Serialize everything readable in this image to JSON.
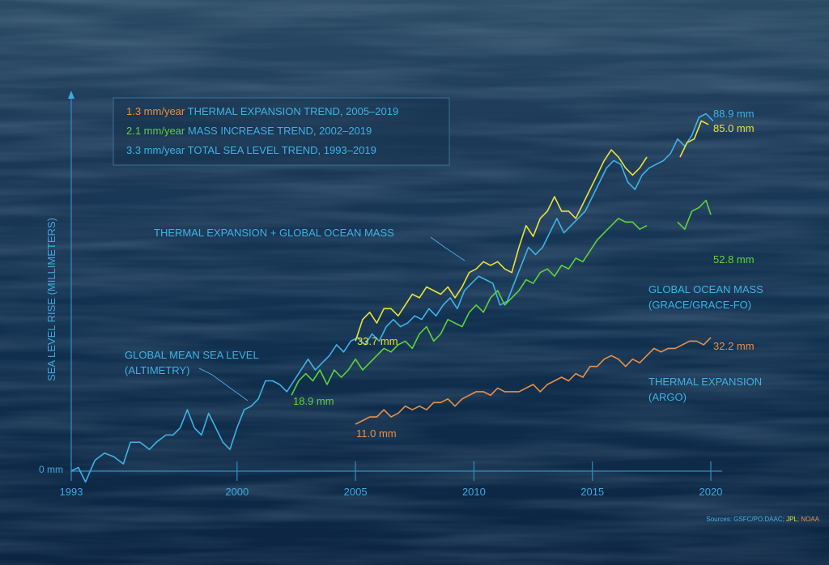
{
  "chart_data": {
    "type": "line",
    "ylabel": "SEA LEVEL RISE (MILLIMETERS)",
    "y_zero_label": "0 mm",
    "x_ticks": [
      1993,
      2000,
      2005,
      2010,
      2015,
      2020
    ],
    "xlim": [
      1993,
      2021
    ],
    "ylim": [
      0,
      100
    ],
    "legend": [
      {
        "rate": "1.3 mm/year",
        "text": "THERMAL EXPANSION TREND, 2005–2019",
        "rate_color": "#f0913c"
      },
      {
        "rate": "2.1 mm/year",
        "text": "MASS INCREASE TREND, 2002–2019",
        "rate_color": "#5ed33a"
      },
      {
        "rate": "3.3 mm/year",
        "text": "TOTAL SEA LEVEL TREND, 1993–2019",
        "rate_color": "#3fb3e6"
      }
    ],
    "annotations": {
      "gmsl_line1": "GLOBAL MEAN SEA LEVEL",
      "gmsl_line2": "(ALTIMETRY)",
      "sum_label": "THERMAL EXPANSION + GLOBAL OCEAN MASS",
      "mass_line1": "GLOBAL OCEAN MASS",
      "mass_line2": "(GRACE/GRACE-FO)",
      "thermal_line1": "THERMAL EXPANSION",
      "thermal_line2": "(ARGO)"
    },
    "end_labels": {
      "gmsl_end": "88.9 mm",
      "sum_end": "85.0 mm",
      "mass_end": "52.8 mm",
      "thermal_end": "32.2 mm",
      "sum_start": "33.7 mm",
      "mass_start": "18.9 mm",
      "thermal_start": "11.0 mm"
    },
    "sources": {
      "prefix": "Sources: ",
      "s1": "GSFC/PO.DAAC",
      "s2": "JPL",
      "s3": "NOAA"
    },
    "series": [
      {
        "name": "GLOBAL MEAN SEA LEVEL (ALTIMETRY)",
        "color": "#3fb3e6",
        "points": [
          [
            1993.0,
            0
          ],
          [
            1993.3,
            1
          ],
          [
            1993.6,
            -3
          ],
          [
            1994.0,
            3
          ],
          [
            1994.4,
            5
          ],
          [
            1994.8,
            4
          ],
          [
            1995.2,
            2
          ],
          [
            1995.5,
            8
          ],
          [
            1995.9,
            8
          ],
          [
            1996.3,
            6
          ],
          [
            1996.6,
            8
          ],
          [
            1997.0,
            10
          ],
          [
            1997.3,
            10
          ],
          [
            1997.6,
            12
          ],
          [
            1997.9,
            17
          ],
          [
            1998.2,
            12
          ],
          [
            1998.5,
            10
          ],
          [
            1998.8,
            16
          ],
          [
            1999.1,
            12
          ],
          [
            1999.4,
            8
          ],
          [
            1999.7,
            6
          ],
          [
            2000.0,
            12
          ],
          [
            2000.3,
            17
          ],
          [
            2000.6,
            18
          ],
          [
            2000.9,
            20
          ],
          [
            2001.2,
            25
          ],
          [
            2001.5,
            25
          ],
          [
            2001.8,
            24
          ],
          [
            2002.1,
            22
          ],
          [
            2002.4,
            25
          ],
          [
            2002.7,
            28
          ],
          [
            2003.0,
            31
          ],
          [
            2003.3,
            28
          ],
          [
            2003.6,
            30
          ],
          [
            2003.9,
            32
          ],
          [
            2004.2,
            35
          ],
          [
            2004.5,
            33
          ],
          [
            2004.8,
            36
          ],
          [
            2005.1,
            37
          ],
          [
            2005.4,
            35
          ],
          [
            2005.7,
            38
          ],
          [
            2006.0,
            36
          ],
          [
            2006.3,
            40
          ],
          [
            2006.6,
            42
          ],
          [
            2006.9,
            40
          ],
          [
            2007.2,
            41
          ],
          [
            2007.5,
            43
          ],
          [
            2007.8,
            42
          ],
          [
            2008.1,
            45
          ],
          [
            2008.4,
            43
          ],
          [
            2008.7,
            46
          ],
          [
            2009.0,
            48
          ],
          [
            2009.3,
            45
          ],
          [
            2009.6,
            50
          ],
          [
            2009.9,
            52
          ],
          [
            2010.2,
            54
          ],
          [
            2010.5,
            53
          ],
          [
            2010.8,
            52
          ],
          [
            2011.1,
            46
          ],
          [
            2011.4,
            47
          ],
          [
            2011.7,
            52
          ],
          [
            2012.0,
            57
          ],
          [
            2012.3,
            62
          ],
          [
            2012.6,
            60
          ],
          [
            2012.9,
            62
          ],
          [
            2013.2,
            66
          ],
          [
            2013.5,
            70
          ],
          [
            2013.8,
            66
          ],
          [
            2014.1,
            68
          ],
          [
            2014.4,
            70
          ],
          [
            2014.7,
            72
          ],
          [
            2015.0,
            76
          ],
          [
            2015.3,
            80
          ],
          [
            2015.6,
            84
          ],
          [
            2015.9,
            86
          ],
          [
            2016.2,
            85
          ],
          [
            2016.5,
            80
          ],
          [
            2016.8,
            78
          ],
          [
            2017.1,
            82
          ],
          [
            2017.4,
            84
          ],
          [
            2017.7,
            85
          ],
          [
            2018.0,
            86
          ],
          [
            2018.3,
            88
          ],
          [
            2018.6,
            92
          ],
          [
            2018.9,
            90
          ],
          [
            2019.2,
            93
          ],
          [
            2019.5,
            98
          ],
          [
            2019.8,
            99
          ],
          [
            2020.1,
            97
          ]
        ]
      },
      {
        "name": "THERMAL EXPANSION + GLOBAL OCEAN MASS",
        "color": "#e8e338",
        "segments": [
          [
            [
              2005.0,
              36
            ],
            [
              2005.3,
              42
            ],
            [
              2005.6,
              44
            ],
            [
              2005.9,
              41
            ],
            [
              2006.2,
              45
            ],
            [
              2006.5,
              45
            ],
            [
              2006.8,
              43
            ],
            [
              2007.1,
              46
            ],
            [
              2007.4,
              49
            ],
            [
              2007.7,
              48
            ],
            [
              2008.0,
              51
            ],
            [
              2008.3,
              50
            ],
            [
              2008.6,
              49
            ],
            [
              2008.9,
              51
            ],
            [
              2009.2,
              48
            ],
            [
              2009.5,
              51
            ],
            [
              2009.8,
              55
            ],
            [
              2010.1,
              56
            ],
            [
              2010.4,
              58
            ],
            [
              2010.7,
              57
            ],
            [
              2011.0,
              58
            ],
            [
              2011.3,
              56
            ],
            [
              2011.6,
              55
            ],
            [
              2011.9,
              62
            ],
            [
              2012.2,
              68
            ],
            [
              2012.5,
              65
            ],
            [
              2012.8,
              70
            ],
            [
              2013.1,
              72
            ],
            [
              2013.4,
              76
            ],
            [
              2013.7,
              72
            ],
            [
              2014.0,
              72
            ],
            [
              2014.3,
              70
            ],
            [
              2014.6,
              74
            ],
            [
              2014.9,
              78
            ],
            [
              2015.2,
              82
            ],
            [
              2015.5,
              86
            ],
            [
              2015.8,
              89
            ],
            [
              2016.1,
              87
            ],
            [
              2016.4,
              84
            ],
            [
              2016.7,
              82
            ],
            [
              2017.0,
              84
            ],
            [
              2017.3,
              87
            ]
          ],
          [
            [
              2018.7,
              87
            ],
            [
              2019.0,
              91
            ],
            [
              2019.3,
              92
            ],
            [
              2019.6,
              97
            ],
            [
              2019.9,
              96
            ]
          ]
        ]
      },
      {
        "name": "GLOBAL OCEAN MASS (GRACE/GRACE-FO)",
        "color": "#5ed33a",
        "segments": [
          [
            [
              2002.3,
              21
            ],
            [
              2002.6,
              25
            ],
            [
              2002.9,
              27
            ],
            [
              2003.2,
              25
            ],
            [
              2003.5,
              28
            ],
            [
              2003.8,
              24
            ],
            [
              2004.1,
              28
            ],
            [
              2004.4,
              26
            ],
            [
              2004.7,
              28
            ],
            [
              2005.0,
              31
            ],
            [
              2005.3,
              28
            ],
            [
              2005.6,
              30
            ],
            [
              2005.9,
              32
            ],
            [
              2006.2,
              34
            ],
            [
              2006.5,
              33
            ],
            [
              2006.8,
              35
            ],
            [
              2007.1,
              36
            ],
            [
              2007.4,
              34
            ],
            [
              2007.7,
              38
            ],
            [
              2008.0,
              40
            ],
            [
              2008.3,
              36
            ],
            [
              2008.6,
              38
            ],
            [
              2008.9,
              42
            ],
            [
              2009.2,
              41
            ],
            [
              2009.5,
              40
            ],
            [
              2009.8,
              44
            ],
            [
              2010.1,
              46
            ],
            [
              2010.4,
              44
            ],
            [
              2010.7,
              48
            ],
            [
              2011.0,
              50
            ],
            [
              2011.3,
              46
            ],
            [
              2011.6,
              48
            ],
            [
              2011.9,
              50
            ],
            [
              2012.2,
              53
            ],
            [
              2012.5,
              52
            ],
            [
              2012.8,
              55
            ],
            [
              2013.1,
              56
            ],
            [
              2013.4,
              54
            ],
            [
              2013.7,
              57
            ],
            [
              2014.0,
              56
            ],
            [
              2014.3,
              59
            ],
            [
              2014.6,
              58
            ],
            [
              2014.9,
              61
            ],
            [
              2015.2,
              64
            ],
            [
              2015.5,
              66
            ],
            [
              2015.8,
              68
            ],
            [
              2016.1,
              70
            ],
            [
              2016.4,
              69
            ],
            [
              2016.7,
              69
            ],
            [
              2017.0,
              67
            ],
            [
              2017.3,
              68
            ]
          ],
          [
            [
              2018.6,
              69
            ],
            [
              2018.9,
              67
            ],
            [
              2019.2,
              72
            ],
            [
              2019.5,
              73
            ],
            [
              2019.8,
              75
            ],
            [
              2020.0,
              71
            ]
          ]
        ]
      },
      {
        "name": "THERMAL EXPANSION (ARGO)",
        "color": "#e8914a",
        "points": [
          [
            2005.0,
            13
          ],
          [
            2005.3,
            14
          ],
          [
            2005.6,
            15
          ],
          [
            2005.9,
            15
          ],
          [
            2006.2,
            17
          ],
          [
            2006.5,
            15
          ],
          [
            2006.8,
            16
          ],
          [
            2007.1,
            18
          ],
          [
            2007.4,
            17
          ],
          [
            2007.7,
            18
          ],
          [
            2008.0,
            17
          ],
          [
            2008.3,
            19
          ],
          [
            2008.6,
            19
          ],
          [
            2008.9,
            20
          ],
          [
            2009.2,
            18
          ],
          [
            2009.5,
            20
          ],
          [
            2009.8,
            21
          ],
          [
            2010.1,
            22
          ],
          [
            2010.4,
            22
          ],
          [
            2010.7,
            21
          ],
          [
            2011.0,
            23
          ],
          [
            2011.3,
            22
          ],
          [
            2011.6,
            22
          ],
          [
            2011.9,
            22
          ],
          [
            2012.2,
            23
          ],
          [
            2012.5,
            24
          ],
          [
            2012.8,
            22
          ],
          [
            2013.1,
            24
          ],
          [
            2013.4,
            25
          ],
          [
            2013.7,
            26
          ],
          [
            2014.0,
            25
          ],
          [
            2014.3,
            27
          ],
          [
            2014.6,
            26
          ],
          [
            2014.9,
            29
          ],
          [
            2015.2,
            29
          ],
          [
            2015.5,
            31
          ],
          [
            2015.8,
            32
          ],
          [
            2016.1,
            31
          ],
          [
            2016.4,
            29
          ],
          [
            2016.7,
            31
          ],
          [
            2017.0,
            30
          ],
          [
            2017.3,
            32
          ],
          [
            2017.6,
            34
          ],
          [
            2017.9,
            33
          ],
          [
            2018.2,
            34
          ],
          [
            2018.5,
            34
          ],
          [
            2018.8,
            35
          ],
          [
            2019.1,
            36
          ],
          [
            2019.4,
            36
          ],
          [
            2019.7,
            35
          ],
          [
            2020.0,
            37
          ]
        ]
      }
    ]
  }
}
